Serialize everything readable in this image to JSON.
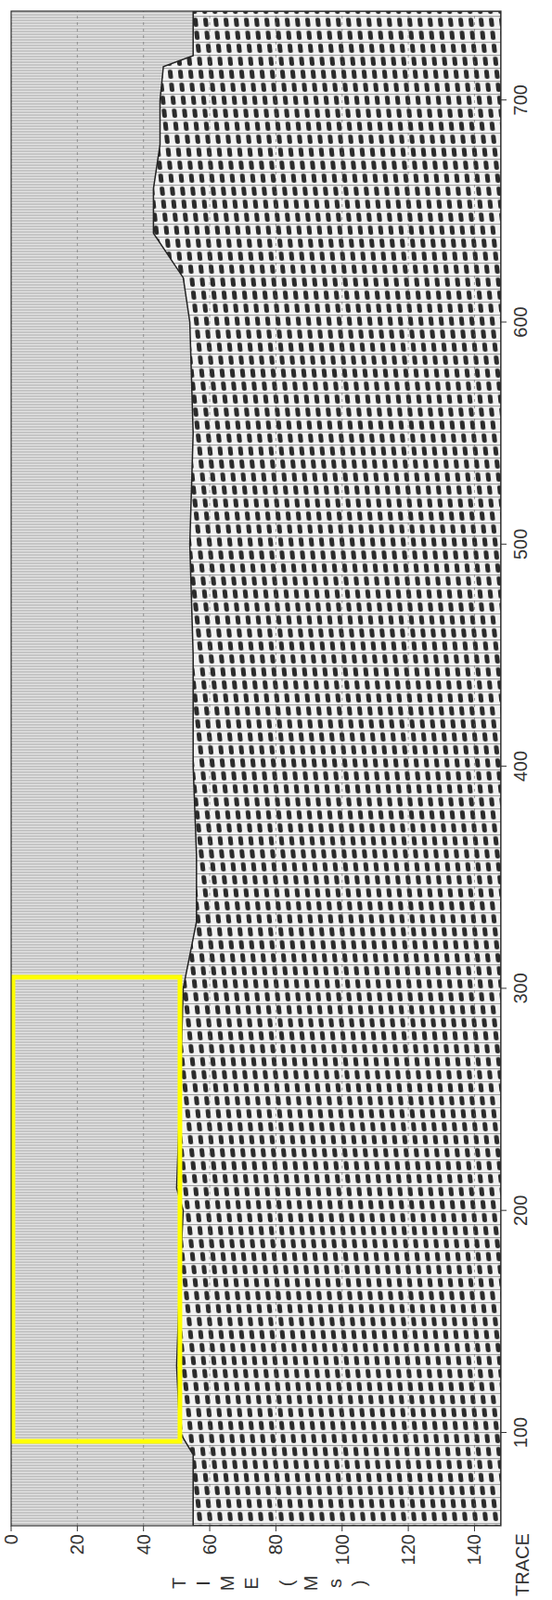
{
  "chart_data": {
    "type": "seismic",
    "xlabel": "TRACE",
    "ylabel": "TIME (Ms)",
    "xlim": [
      58,
      740
    ],
    "xticks": [
      100,
      200,
      300,
      400,
      500,
      600,
      700
    ],
    "ylim": [
      0,
      148
    ],
    "yticks": [
      0,
      20,
      40,
      60,
      80,
      100,
      120,
      140
    ],
    "grid": true,
    "first_break": {
      "x": [
        58,
        90,
        100,
        130,
        170,
        200,
        210,
        250,
        300,
        330,
        360,
        400,
        450,
        500,
        550,
        600,
        620,
        640,
        660,
        680,
        700,
        715,
        720,
        740
      ],
      "values": [
        55,
        55,
        51,
        50,
        51,
        52,
        50,
        51,
        52,
        56,
        56,
        55,
        55,
        54,
        55,
        54,
        52,
        43,
        43,
        45,
        45,
        46,
        55,
        55
      ]
    },
    "highlight": {
      "x": [
        96,
        305
      ],
      "y": [
        0,
        51
      ],
      "color": "#ffff00"
    }
  }
}
